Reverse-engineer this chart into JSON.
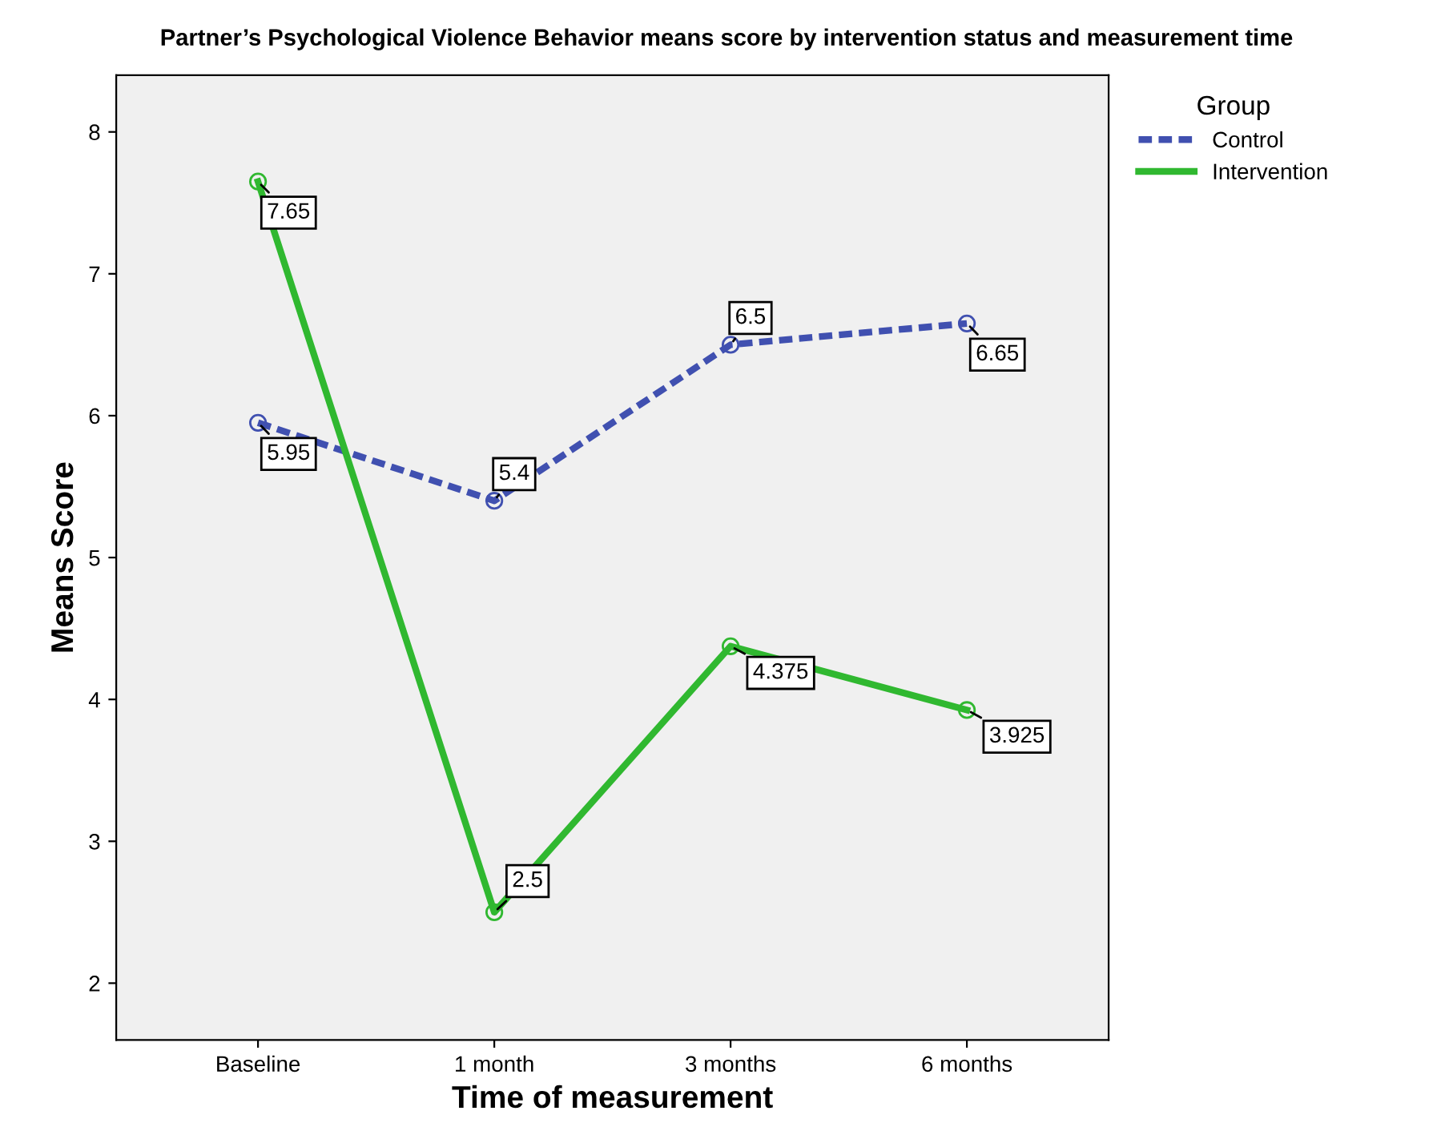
{
  "chart_data": {
    "type": "line",
    "title": "Partner’s Psychological Violence Behavior means score by intervention status and measurement time",
    "xlabel": "Time of measurement",
    "ylabel": "Means Score",
    "legend_title": "Group",
    "categories": [
      "Baseline",
      "1 month",
      "3 months",
      "6 months"
    ],
    "series": [
      {
        "name": "Control",
        "color": "#4050b0",
        "line_style": "dashed",
        "values": [
          5.95,
          5.4,
          6.5,
          6.65
        ]
      },
      {
        "name": "Intervention",
        "color": "#30b830",
        "line_style": "solid",
        "values": [
          7.65,
          2.5,
          4.375,
          3.925
        ]
      }
    ],
    "ylim": [
      1.6,
      8.4
    ],
    "yticks": [
      2,
      3,
      4,
      5,
      6,
      7,
      8
    ],
    "marker": "circle",
    "data_labels": true,
    "legend": "top right",
    "grid": false
  }
}
